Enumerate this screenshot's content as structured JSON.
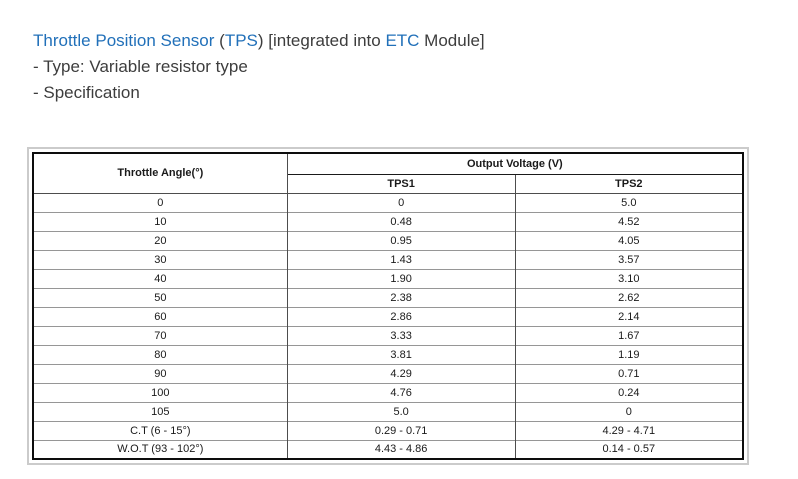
{
  "colors": {
    "link_blue": "#2170b9",
    "body_text": "#3d3d3d",
    "table_outer_border": "#0d0d0d",
    "table_frame_gray": "#cbcbcb",
    "row_line_gray": "#969696"
  },
  "header": {
    "title": {
      "part1_link": "Throttle Position Sensor",
      "part2": " (",
      "part3_link": "TPS",
      "part4": ") [integrated into ",
      "part5_link": "ETC",
      "part6": " Module]"
    },
    "type_line": "- Type: Variable resistor type",
    "spec_line": "- Specification"
  },
  "spec_table": {
    "corner_header": "Throttle Angle(°)",
    "group_header": "Output Voltage (V)",
    "sub_headers": [
      "TPS1",
      "TPS2"
    ],
    "rows": [
      [
        "0",
        "0",
        "5.0"
      ],
      [
        "10",
        "0.48",
        "4.52"
      ],
      [
        "20",
        "0.95",
        "4.05"
      ],
      [
        "30",
        "1.43",
        "3.57"
      ],
      [
        "40",
        "1.90",
        "3.10"
      ],
      [
        "50",
        "2.38",
        "2.62"
      ],
      [
        "60",
        "2.86",
        "2.14"
      ],
      [
        "70",
        "3.33",
        "1.67"
      ],
      [
        "80",
        "3.81",
        "1.19"
      ],
      [
        "90",
        "4.29",
        "0.71"
      ],
      [
        "100",
        "4.76",
        "0.24"
      ],
      [
        "105",
        "5.0",
        "0"
      ],
      [
        "C.T (6 - 15°)",
        "0.29 - 0.71",
        "4.29 - 4.71"
      ],
      [
        "W.O.T (93 - 102°)",
        "4.43 - 4.86",
        "0.14 - 0.57"
      ]
    ]
  }
}
